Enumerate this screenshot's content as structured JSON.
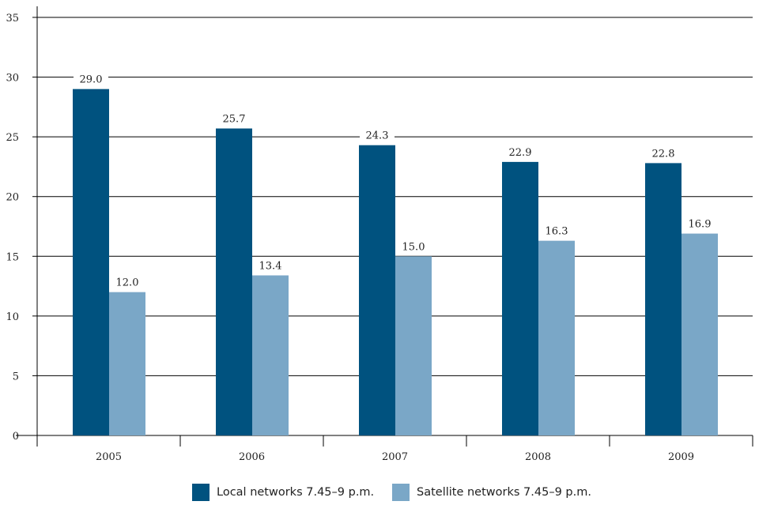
{
  "chart_data": {
    "type": "bar",
    "title": "",
    "xlabel": "",
    "ylabel": "",
    "categories": [
      "2005",
      "2006",
      "2007",
      "2008",
      "2009"
    ],
    "series": [
      {
        "name": "Local networks 7.45–9 p.m.",
        "values": [
          29.0,
          25.7,
          24.3,
          22.9,
          22.8
        ],
        "color": "#00527f"
      },
      {
        "name": "Satellite networks 7.45–9 p.m.",
        "values": [
          12.0,
          13.4,
          15.0,
          16.3,
          16.9
        ],
        "color": "#7aa7c7"
      }
    ],
    "value_labels": [
      [
        "29.0",
        "25.7",
        "24.3",
        "22.9",
        "22.8"
      ],
      [
        "12.0",
        "13.4",
        "15.0",
        "16.3",
        "16.9"
      ]
    ],
    "ylim": [
      0,
      35
    ],
    "yticks": [
      "0",
      "5",
      "10",
      "15",
      "20",
      "25",
      "30",
      "35"
    ],
    "grid": "horizontal",
    "legend_position": "bottom-center",
    "colors": {
      "gridline": "#000000",
      "axis": "#000000",
      "text": "#222222"
    }
  }
}
